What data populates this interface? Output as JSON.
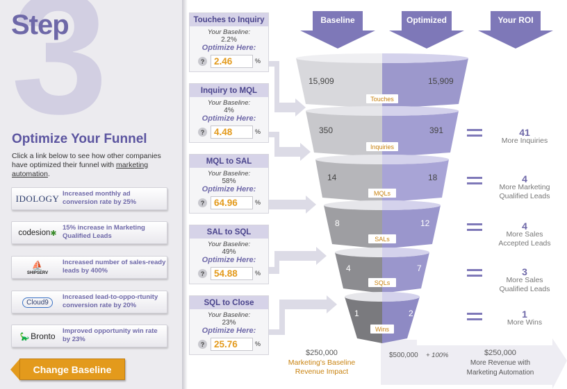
{
  "left_panel": {
    "step_label": "Step",
    "step_number": "3",
    "title": "Optimize Your Funnel",
    "intro_text": "Click a link below to see how other companies have optimized their funnel with ",
    "intro_link": "marketing automation",
    "intro_end": ".",
    "case_studies": [
      {
        "logo": "IDOLOGY",
        "text": "Increased monthly ad conversion rate by 25%"
      },
      {
        "logo": "codesion",
        "text": "15% increase in Marketing Qualified Leads"
      },
      {
        "logo": "SHIPSERV",
        "text": "Increased number of sales-ready leads by 400%"
      },
      {
        "logo": "Cloud9",
        "text": "Increased lead-to-oppo-rtunity conversion rate by 20%"
      },
      {
        "logo": "Bronto",
        "text": "Improved opportunity win rate by 23%"
      }
    ],
    "change_baseline_label": "Change Baseline"
  },
  "rates": [
    {
      "title": "Touches to Inquiry",
      "baseline_label": "Your Baseline:",
      "baseline_value": "2.2%",
      "optimize_label": "Optimize Here:",
      "optimized_value": "2.46",
      "unit": "%"
    },
    {
      "title": "Inquiry to MQL",
      "baseline_label": "Your Baseline:",
      "baseline_value": "4%",
      "optimize_label": "Optimize Here:",
      "optimized_value": "4.48",
      "unit": "%"
    },
    {
      "title": "MQL to SAL",
      "baseline_label": "Your Baseline:",
      "baseline_value": "58%",
      "optimize_label": "Optimize Here:",
      "optimized_value": "64.96",
      "unit": "%"
    },
    {
      "title": "SAL to SQL",
      "baseline_label": "Your Baseline:",
      "baseline_value": "49%",
      "optimize_label": "Optimize Here:",
      "optimized_value": "54.88",
      "unit": "%"
    },
    {
      "title": "SQL to Close",
      "baseline_label": "Your Baseline:",
      "baseline_value": "23%",
      "optimize_label": "Optimize Here:",
      "optimized_value": "25.76",
      "unit": "%"
    }
  ],
  "help_glyph": "?",
  "columns": {
    "baseline": "Baseline",
    "optimized": "Optimized",
    "roi": "Your ROI"
  },
  "funnel": [
    {
      "stage": "Touches",
      "baseline": "15,909",
      "optimized": "15,909"
    },
    {
      "stage": "Inquiries",
      "baseline": "350",
      "optimized": "391"
    },
    {
      "stage": "MQLs",
      "baseline": "14",
      "optimized": "18"
    },
    {
      "stage": "SALs",
      "baseline": "8",
      "optimized": "12"
    },
    {
      "stage": "SQLs",
      "baseline": "4",
      "optimized": "7"
    },
    {
      "stage": "Wins",
      "baseline": "1",
      "optimized": "2"
    }
  ],
  "roi": [
    {
      "value": "41",
      "line1": "More Inquiries",
      "line2": ""
    },
    {
      "value": "4",
      "line1": "More Marketing",
      "line2": "Qualified Leads"
    },
    {
      "value": "4",
      "line1": "More Sales",
      "line2": "Accepted Leads"
    },
    {
      "value": "3",
      "line1": "More Sales",
      "line2": "Qualified Leads"
    },
    {
      "value": "1",
      "line1": "More Wins",
      "line2": ""
    }
  ],
  "revenue": {
    "baseline_amount": "$250,000",
    "baseline_label_1": "Marketing's Baseline",
    "baseline_label_2": "Revenue Impact",
    "base_small": "$500,000",
    "increase_pct": "+ 100%",
    "more_amount": "$250,000",
    "more_label_1": "More Revenue with",
    "more_label_2": "Marketing Automation"
  },
  "colors": {
    "accent_purple": "#6e68a8",
    "funnel_purple": "#8a84c4",
    "orange": "#e39a1c",
    "panel_gray": "#ecebef"
  }
}
